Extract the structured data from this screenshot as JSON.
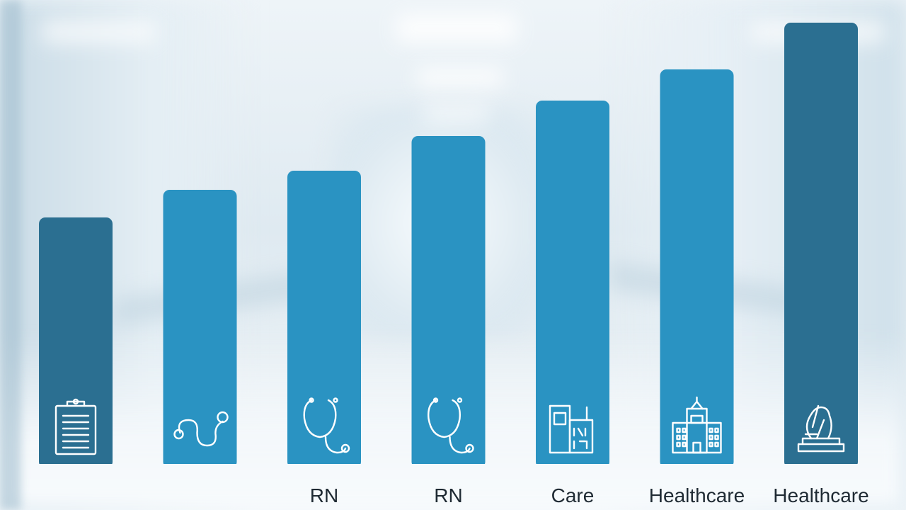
{
  "chart_data": {
    "type": "bar",
    "categories": [
      "",
      "",
      "RN",
      "RN",
      "Care",
      "Healthcare",
      "Healthcare"
    ],
    "values": [
      348,
      387,
      414,
      463,
      513,
      557,
      623
    ],
    "ylim": [
      0,
      655
    ],
    "grid": false,
    "legend": "none",
    "title": "",
    "xlabel": "",
    "ylabel": "",
    "icons": [
      "clipboard-icon",
      "stethoscope-icon",
      "stethoscope-icon",
      "stethoscope-icon",
      "clinic-building-icon",
      "hospital-building-icon",
      "monument-icon"
    ],
    "bar_colors": [
      "#2b6f91",
      "#2a93c2",
      "#2a93c2",
      "#2a93c2",
      "#2a93c2",
      "#2a93c2",
      "#2b6f91"
    ]
  }
}
